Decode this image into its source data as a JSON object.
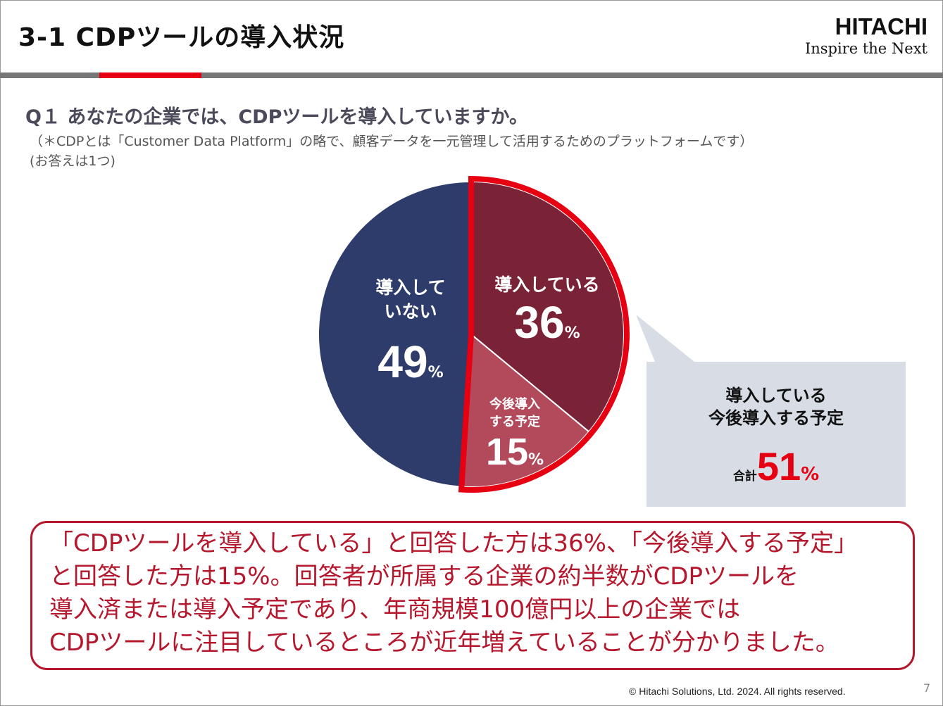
{
  "header": {
    "title": "3-1  CDPツールの導入状況",
    "brand": "HITACHI",
    "tagline": "Inspire the Next"
  },
  "question": {
    "text": "Q１  あなたの企業では、CDPツールを導入していますか。",
    "note1": "（＊CDPとは「Customer Data Platform」の略で、顧客データを一元管理して活用するためのプラットフォームです）",
    "note2": "(お答えは1つ)"
  },
  "chart_data": {
    "type": "pie",
    "title": "あなたの企業では、CDPツールを導入していますか。",
    "unit": "%",
    "slices": [
      {
        "label_lines": [
          "導入している"
        ],
        "value": 36,
        "value_text": "36",
        "color": "#7a2236"
      },
      {
        "label_lines": [
          "今後導入",
          "する予定"
        ],
        "value": 15,
        "value_text": "15",
        "color": "#b24a5c"
      },
      {
        "label_lines": [
          "導入して",
          "いない"
        ],
        "value": 49,
        "value_text": "49",
        "color": "#2e3c6c"
      }
    ],
    "highlight_color": "#e60012"
  },
  "callout": {
    "line1": "導入している",
    "line2": "今後導入する予定",
    "total_label": "合計",
    "total_value": "51",
    "total_unit": "%"
  },
  "summary": {
    "lines": [
      "「CDPツールを導入している」と回答した方は36%、「今後導入する予定」",
      "と回答した方は15%。回答者が所属する企業の約半数がCDPツールを",
      "導入済または導入予定であり、年商規模100億円以上の企業では",
      "CDPツールに注目しているところが近年増えていることが分かりました。"
    ]
  },
  "footer": {
    "copyright": "© Hitachi Solutions, Ltd. 2024. All rights reserved.",
    "page": "7"
  }
}
